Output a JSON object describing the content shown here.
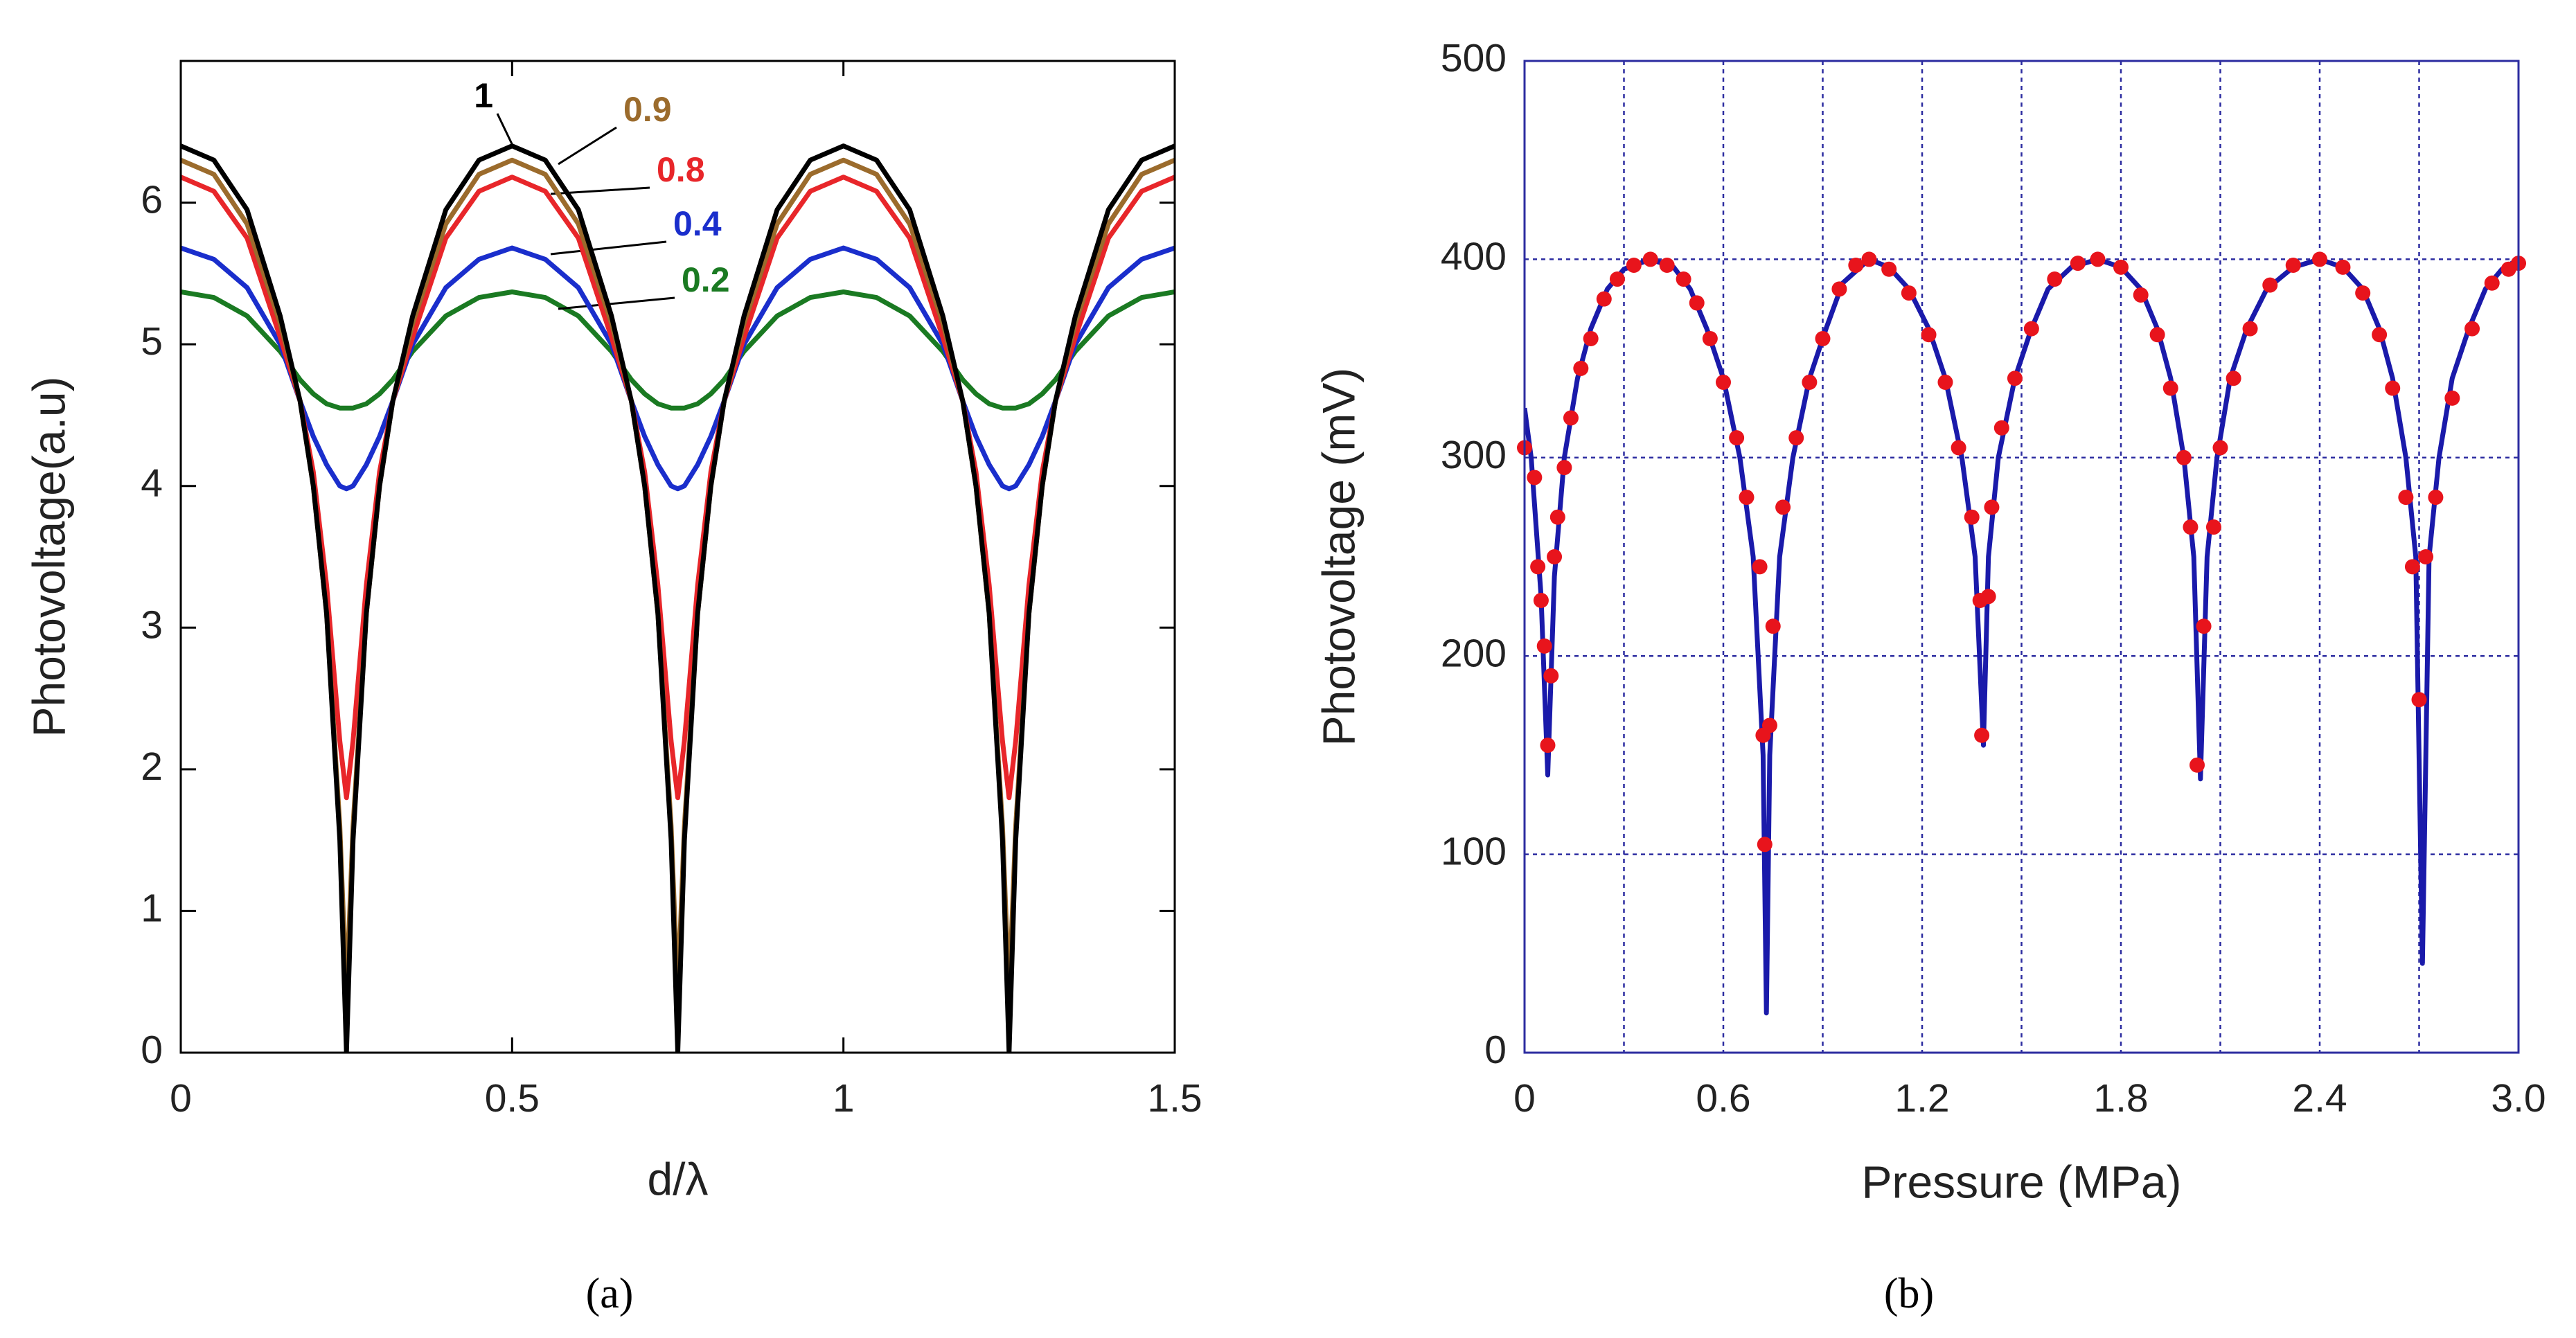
{
  "chart_data": [
    {
      "type": "line",
      "caption": "(a)",
      "x_label": "d/λ",
      "y_label": "Photovoltage(a.u)",
      "xlim": [
        0,
        1.5
      ],
      "ylim": [
        0,
        7
      ],
      "xticks": [
        0,
        0.5,
        1,
        1.5
      ],
      "yticks": [
        0,
        1,
        2,
        3,
        4,
        5,
        6
      ],
      "grid": false,
      "x": [
        0,
        0.05,
        0.1,
        0.15,
        0.18,
        0.2,
        0.22,
        0.24,
        0.25,
        0.26,
        0.28,
        0.3,
        0.32,
        0.35,
        0.4,
        0.45,
        0.5,
        0.55,
        0.6,
        0.65,
        0.68,
        0.7,
        0.72,
        0.74,
        0.75,
        0.76,
        0.78,
        0.8,
        0.82,
        0.85,
        0.9,
        0.95,
        1,
        1.05,
        1.1,
        1.15,
        1.18,
        1.2,
        1.22,
        1.24,
        1.25,
        1.26,
        1.28,
        1.3,
        1.32,
        1.35,
        1.4,
        1.45,
        1.5
      ],
      "series": [
        {
          "name": "0.2",
          "color": "#1a7a22",
          "values": [
            5.37,
            5.33,
            5.2,
            4.95,
            4.75,
            4.65,
            4.58,
            4.55,
            4.55,
            4.55,
            4.58,
            4.65,
            4.75,
            4.95,
            5.2,
            5.33,
            5.37,
            5.33,
            5.2,
            4.95,
            4.75,
            4.65,
            4.58,
            4.55,
            4.55,
            4.55,
            4.58,
            4.65,
            4.75,
            4.95,
            5.2,
            5.33,
            5.37,
            5.33,
            5.2,
            4.95,
            4.75,
            4.65,
            4.58,
            4.55,
            4.55,
            4.55,
            4.58,
            4.65,
            4.75,
            4.95,
            5.2,
            5.33,
            5.37
          ]
        },
        {
          "name": "0.4",
          "color": "#1a2ecc",
          "values": [
            5.68,
            5.6,
            5.4,
            5.0,
            4.6,
            4.35,
            4.15,
            4.0,
            3.98,
            4.0,
            4.15,
            4.35,
            4.6,
            5.0,
            5.4,
            5.6,
            5.68,
            5.6,
            5.4,
            5.0,
            4.6,
            4.35,
            4.15,
            4.0,
            3.98,
            4.0,
            4.15,
            4.35,
            4.6,
            5.0,
            5.4,
            5.6,
            5.68,
            5.6,
            5.4,
            5.0,
            4.6,
            4.35,
            4.15,
            4.0,
            3.98,
            4.0,
            4.15,
            4.35,
            4.6,
            5.0,
            5.4,
            5.6,
            5.68
          ]
        },
        {
          "name": "0.8",
          "color": "#e8262a",
          "values": [
            6.18,
            6.08,
            5.75,
            5.05,
            4.6,
            4.1,
            3.3,
            2.2,
            1.8,
            2.2,
            3.3,
            4.1,
            4.6,
            5.05,
            5.75,
            6.08,
            6.18,
            6.08,
            5.75,
            5.05,
            4.6,
            4.1,
            3.3,
            2.2,
            1.8,
            2.2,
            3.3,
            4.1,
            4.6,
            5.05,
            5.75,
            6.08,
            6.18,
            6.08,
            5.75,
            5.05,
            4.6,
            4.1,
            3.3,
            2.2,
            1.8,
            2.2,
            3.3,
            4.1,
            4.6,
            5.05,
            5.75,
            6.08,
            6.18
          ]
        },
        {
          "name": "0.9",
          "color": "#9b6b2c",
          "values": [
            6.3,
            6.2,
            5.85,
            5.15,
            4.6,
            4.0,
            3.1,
            1.6,
            0.4,
            1.6,
            3.1,
            4.0,
            4.6,
            5.15,
            5.85,
            6.2,
            6.3,
            6.2,
            5.85,
            5.15,
            4.6,
            4.0,
            3.1,
            1.6,
            0.4,
            1.6,
            3.1,
            4.0,
            4.6,
            5.15,
            5.85,
            6.2,
            6.3,
            6.2,
            5.85,
            5.15,
            4.6,
            4.0,
            3.1,
            1.6,
            0.4,
            1.6,
            3.1,
            4.0,
            4.6,
            5.15,
            5.85,
            6.2,
            6.3
          ]
        },
        {
          "name": "1",
          "color": "#000000",
          "values": [
            6.4,
            6.3,
            5.95,
            5.2,
            4.6,
            4.0,
            3.1,
            1.5,
            0,
            1.5,
            3.1,
            4.0,
            4.6,
            5.2,
            5.95,
            6.3,
            6.4,
            6.3,
            5.95,
            5.2,
            4.6,
            4.0,
            3.1,
            1.5,
            0,
            1.5,
            3.1,
            4.0,
            4.6,
            5.2,
            5.95,
            6.3,
            6.4,
            6.3,
            5.95,
            5.2,
            4.6,
            4.0,
            3.1,
            1.5,
            0,
            1.5,
            3.1,
            4.0,
            4.6,
            5.2,
            5.95,
            6.3,
            6.4
          ]
        }
      ]
    },
    {
      "type": "scatter",
      "caption": "(b)",
      "x_label": "Pressure (MPa)",
      "y_label": "Photovoltage (mV)",
      "xlim": [
        0,
        3
      ],
      "ylim": [
        0,
        500
      ],
      "xticks": [
        0,
        0.6,
        1.2,
        1.8,
        2.4,
        {
          "value": 3,
          "label": "3.0"
        }
      ],
      "xminorticks": [
        0.3,
        0.9,
        1.5,
        2.1,
        2.7
      ],
      "yticks": [
        0,
        100,
        200,
        300,
        400,
        500
      ],
      "grid": true,
      "grid_color": "#2c2ca0",
      "series": [
        {
          "style": "line",
          "color": "#1a1aaa",
          "x": [
            0,
            0.02,
            0.05,
            0.07,
            0.09,
            0.12,
            0.16,
            0.2,
            0.25,
            0.3,
            0.38,
            0.45,
            0.5,
            0.55,
            0.6,
            0.65,
            0.69,
            0.72,
            0.73,
            0.74,
            0.77,
            0.81,
            0.86,
            0.91,
            0.96,
            1.04,
            1.1,
            1.16,
            1.22,
            1.27,
            1.32,
            1.36,
            1.385,
            1.4,
            1.43,
            1.48,
            1.53,
            1.58,
            1.65,
            1.73,
            1.8,
            1.86,
            1.91,
            1.95,
            1.99,
            2.02,
            2.04,
            2.06,
            2.09,
            2.13,
            2.18,
            2.24,
            2.32,
            2.4,
            2.47,
            2.53,
            2.58,
            2.62,
            2.66,
            2.69,
            2.71,
            2.73,
            2.76,
            2.8,
            2.85,
            2.9,
            2.95,
            3.0
          ],
          "values": [
            325,
            300,
            230,
            140,
            240,
            300,
            340,
            365,
            385,
            395,
            400,
            396,
            385,
            365,
            340,
            300,
            250,
            150,
            20,
            150,
            250,
            300,
            340,
            365,
            388,
            400,
            396,
            385,
            365,
            340,
            300,
            250,
            155,
            250,
            300,
            340,
            365,
            385,
            396,
            400,
            396,
            385,
            365,
            340,
            300,
            250,
            138,
            250,
            300,
            340,
            365,
            385,
            396,
            400,
            396,
            385,
            365,
            340,
            300,
            250,
            45,
            250,
            300,
            340,
            365,
            385,
            395,
            400
          ]
        },
        {
          "style": "marker",
          "color": "#e8141c",
          "x": [
            0,
            0.03,
            0.04,
            0.05,
            0.06,
            0.07,
            0.08,
            0.09,
            0.1,
            0.12,
            0.14,
            0.17,
            0.2,
            0.24,
            0.28,
            0.33,
            0.38,
            0.43,
            0.48,
            0.52,
            0.56,
            0.6,
            0.64,
            0.67,
            0.71,
            0.72,
            0.725,
            0.74,
            0.75,
            0.78,
            0.82,
            0.86,
            0.9,
            0.95,
            1.0,
            1.04,
            1.1,
            1.16,
            1.22,
            1.27,
            1.31,
            1.35,
            1.375,
            1.38,
            1.4,
            1.41,
            1.44,
            1.48,
            1.53,
            1.6,
            1.67,
            1.73,
            1.8,
            1.86,
            1.91,
            1.95,
            1.99,
            2.01,
            2.03,
            2.05,
            2.08,
            2.1,
            2.14,
            2.19,
            2.25,
            2.32,
            2.4,
            2.47,
            2.53,
            2.58,
            2.62,
            2.66,
            2.68,
            2.7,
            2.72,
            2.75,
            2.8,
            2.86,
            2.92,
            2.97,
            3.0
          ],
          "values": [
            305,
            290,
            245,
            228,
            205,
            155,
            190,
            250,
            270,
            295,
            320,
            345,
            360,
            380,
            390,
            397,
            400,
            397,
            390,
            378,
            360,
            338,
            310,
            280,
            245,
            160,
            105,
            165,
            215,
            275,
            310,
            338,
            360,
            385,
            397,
            400,
            395,
            383,
            362,
            338,
            305,
            270,
            228,
            160,
            230,
            275,
            315,
            340,
            365,
            390,
            398,
            400,
            396,
            382,
            362,
            335,
            300,
            265,
            145,
            215,
            265,
            305,
            340,
            365,
            387,
            397,
            400,
            396,
            383,
            362,
            335,
            280,
            245,
            178,
            250,
            280,
            330,
            365,
            388,
            395,
            398
          ]
        }
      ]
    }
  ]
}
